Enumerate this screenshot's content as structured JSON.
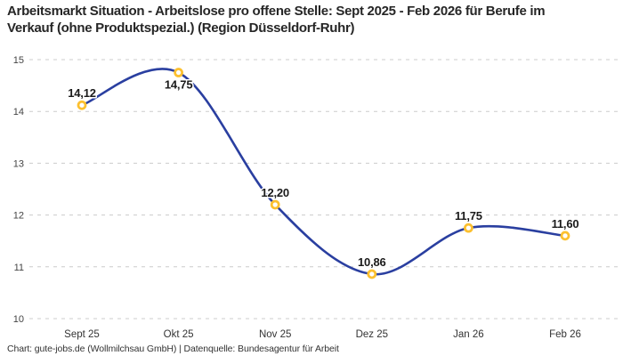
{
  "header": {
    "title": "Arbeitsmarkt Situation - Arbeitslose pro offene Stelle: Sept 2025 - Feb 2026 für Berufe im Verkauf (ohne Produktspezial.) (Region Düsseldorf-Ruhr)"
  },
  "chart_data": {
    "type": "line",
    "title": "Arbeitsmarkt Situation - Arbeitslose pro offene Stelle: Sept 2025 - Feb 2026 für Berufe im Verkauf (ohne Produktspezial.) (Region Düsseldorf-Ruhr)",
    "categories": [
      "Sept 25",
      "Okt 25",
      "Nov 25",
      "Dez 25",
      "Jan 26",
      "Feb 26"
    ],
    "values": [
      14.12,
      14.75,
      12.2,
      10.86,
      11.75,
      11.6
    ],
    "point_labels": [
      "14,12",
      "14,75",
      "12,20",
      "10,86",
      "11,75",
      "11,60"
    ],
    "label_positions": [
      "above",
      "below",
      "above",
      "above",
      "above",
      "above"
    ],
    "xlabel": "",
    "ylabel": "",
    "ylim": [
      10,
      15
    ],
    "yticks": [
      15,
      14,
      13,
      12,
      11,
      10
    ],
    "grid": "horizontal-dashed",
    "legend": "none",
    "curve": "smooth",
    "colors": {
      "line": "#2a3fa0",
      "marker_ring": "#fcc02f",
      "marker_fill": "#ffffff",
      "gridline": "#cccccc",
      "value_label": "#1a1a1a"
    }
  },
  "footer": {
    "text": "Chart: gute-jobs.de (Wollmilchsau GmbH) | Datenquelle: Bundesagentur für Arbeit"
  }
}
